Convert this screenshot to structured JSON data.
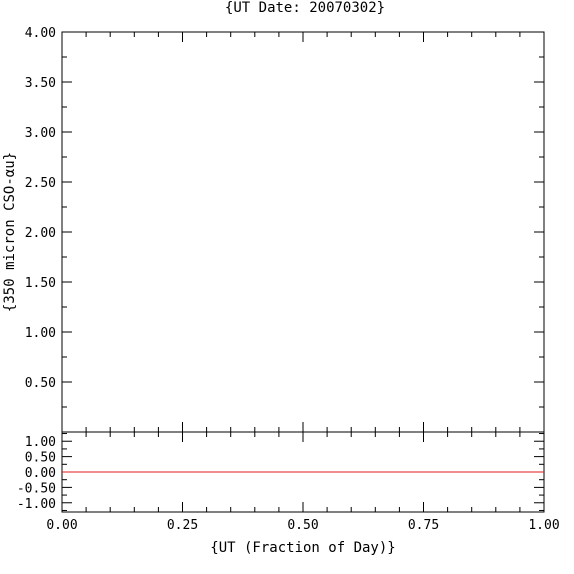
{
  "chart_data": [
    {
      "type": "line",
      "title": "{UT Date: 20070302}",
      "xlabel": "",
      "ylabel": "{350 micron CSO-αu}",
      "xlim": [
        0.0,
        1.0
      ],
      "ylim": [
        0.0,
        4.0
      ],
      "x_ticks": [
        "0.00",
        "0.25",
        "0.50",
        "0.75",
        "1.00"
      ],
      "y_ticks": [
        "0.50",
        "1.00",
        "1.50",
        "2.00",
        "2.50",
        "3.00",
        "3.50",
        "4.00"
      ],
      "series": [],
      "grid": false
    },
    {
      "type": "line",
      "title": "",
      "xlabel": "{UT (Fraction of Day)}",
      "ylabel": "",
      "xlim": [
        0.0,
        1.0
      ],
      "ylim": [
        -1.3,
        1.3
      ],
      "x_ticks": [
        "0.00",
        "0.25",
        "0.50",
        "0.75",
        "1.00"
      ],
      "y_ticks": [
        "1.00",
        "0.50",
        "0.00",
        "-0.50",
        "-1.00"
      ],
      "series": [
        {
          "x": [
            0.0,
            1.0
          ],
          "y": [
            0.0,
            0.0
          ],
          "color": "#e31a1c"
        }
      ],
      "grid": false
    }
  ]
}
